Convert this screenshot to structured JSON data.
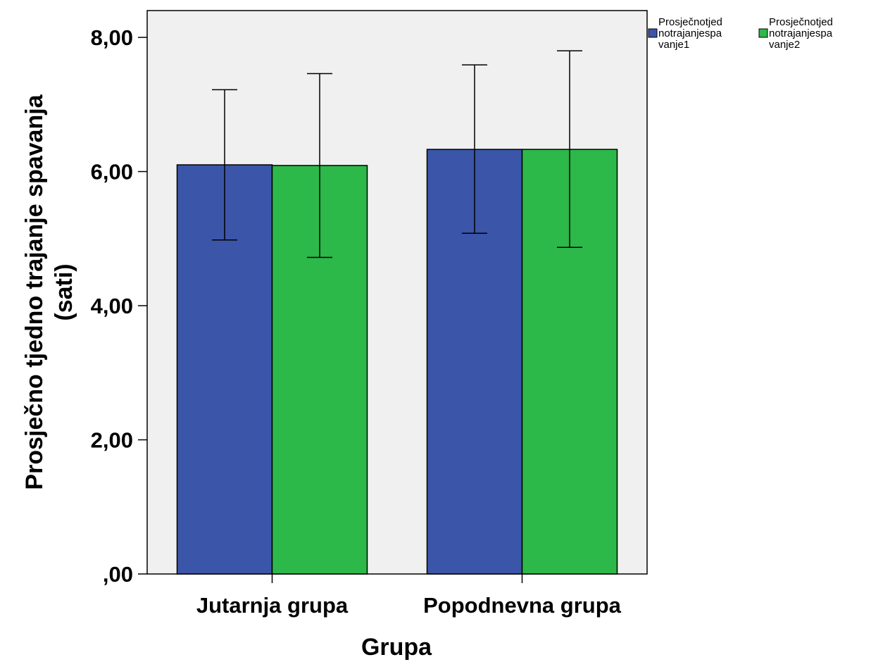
{
  "chart_data": {
    "type": "bar",
    "categories": [
      "Jutarnja grupa",
      "Popodnevna grupa"
    ],
    "series": [
      {
        "name": "Prosječnotjednotrajanjespavanje1",
        "legend_lines": [
          "Prosječnotjed",
          "notrajanjespa",
          "vanje1"
        ],
        "color": "#3b55a8",
        "values": [
          6.1,
          6.33
        ],
        "error_low": [
          4.98,
          5.08
        ],
        "error_high": [
          7.22,
          7.59
        ]
      },
      {
        "name": "Prosječnotjednotrajanjespavanje2",
        "legend_lines": [
          "Prosječnotjed",
          "notrajanjespa",
          "vanje2"
        ],
        "color": "#2db84a",
        "values": [
          6.09,
          6.33
        ],
        "error_low": [
          4.72,
          4.87
        ],
        "error_high": [
          7.46,
          7.8
        ]
      }
    ],
    "xlabel": "Grupa",
    "ylabel_lines": [
      "Prosječno tjedno trajanje spavanja",
      "(sati)"
    ],
    "ylim": [
      0,
      8.4
    ],
    "yticks": [
      {
        "value": 0,
        "label": ",00"
      },
      {
        "value": 2,
        "label": "2,00"
      },
      {
        "value": 4,
        "label": "4,00"
      },
      {
        "value": 6,
        "label": "6,00"
      },
      {
        "value": 8,
        "label": "8,00"
      }
    ],
    "grid": false,
    "legend_position": "top-right",
    "plot_background": "#f0f0f0"
  }
}
